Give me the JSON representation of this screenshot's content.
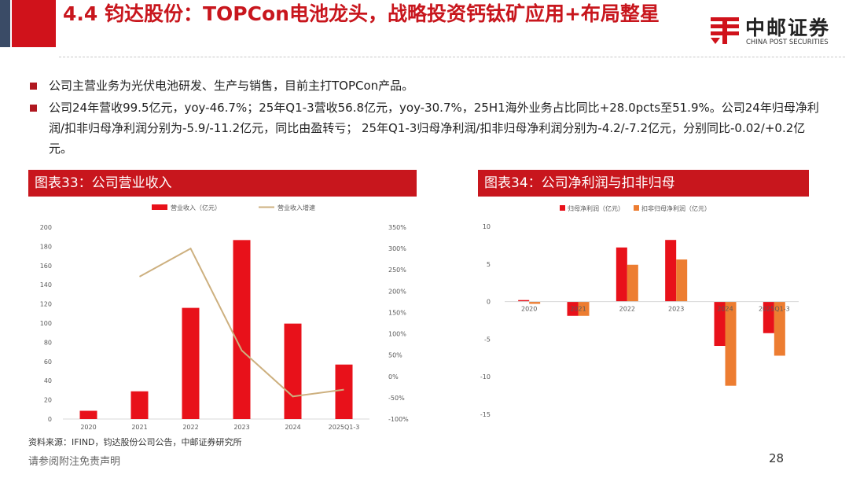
{
  "header": {
    "title": "4.4 钧达股份：TOPCon电池龙头，战略投资钙钛矿应用+布局整星",
    "logo_cn": "中邮证券",
    "logo_en": "CHINA POST SECURITIES"
  },
  "bullets": [
    "公司主营业务为光伏电池研发、生产与销售，目前主打TOPCon产品。",
    "公司24年营收99.5亿元，yoy-46.7%；25年Q1-3营收56.8亿元，yoy-30.7%，25H1海外业务占比同比+28.0pcts至51.9%。公司24年归母净利润/扣非归母净利润分别为-5.9/-11.2亿元，同比由盈转亏； 25年Q1-3归母净利润/扣非归母净利润分别为-4.2/-7.2亿元，分别同比-0.02/+0.2亿元。"
  ],
  "panels": {
    "left_title": "图表33：公司营业收入",
    "right_title": "图表34：公司净利润与扣非归母"
  },
  "chart_data": [
    {
      "type": "bar",
      "title": "图表33：公司营业收入",
      "categories": [
        "2020",
        "2021",
        "2022",
        "2023",
        "2024",
        "2025Q1-3"
      ],
      "series": [
        {
          "name": "营业收入（亿元）",
          "type": "bar",
          "axis": "left",
          "color": "#e8111a",
          "values": [
            8.6,
            28.9,
            115.9,
            186.6,
            99.5,
            56.8
          ]
        },
        {
          "name": "营业收入增速",
          "type": "line",
          "axis": "right",
          "color": "#cdb07f",
          "values": [
            null,
            234,
            300,
            61,
            -47,
            -31
          ]
        }
      ],
      "ylim_left": [
        0,
        200
      ],
      "yticks_left": [
        "0",
        "20",
        "40",
        "60",
        "80",
        "100",
        "120",
        "140",
        "160",
        "180",
        "200"
      ],
      "ylim_right": [
        -100,
        350
      ],
      "yticks_right": [
        "-100%",
        "-50%",
        "0%",
        "50%",
        "100%",
        "150%",
        "200%",
        "250%",
        "300%",
        "350%"
      ],
      "legend": "top-center",
      "grid": false
    },
    {
      "type": "bar",
      "title": "图表34：公司净利润与扣非归母",
      "categories": [
        "2020",
        "2021",
        "2022",
        "2023",
        "2024",
        "2025Q1-3"
      ],
      "series": [
        {
          "name": "归母净利润（亿元）",
          "color": "#e8111a",
          "values": [
            0.2,
            -1.9,
            7.2,
            8.2,
            -5.9,
            -4.2
          ]
        },
        {
          "name": "扣非归母净利润（亿元）",
          "color": "#ed7d31",
          "values": [
            -0.3,
            -1.9,
            4.9,
            5.6,
            -11.2,
            -7.2
          ]
        }
      ],
      "ylim": [
        -15,
        10
      ],
      "yticks": [
        "-15",
        "-10",
        "-5",
        "0",
        "5",
        "10"
      ],
      "legend": "top-center",
      "grid": false
    }
  ],
  "source": "资料来源：IFIND，钧达股份公司公告，中邮证券研究所",
  "footer": {
    "disclaimer": "请参阅附注免责声明",
    "page": "28"
  }
}
